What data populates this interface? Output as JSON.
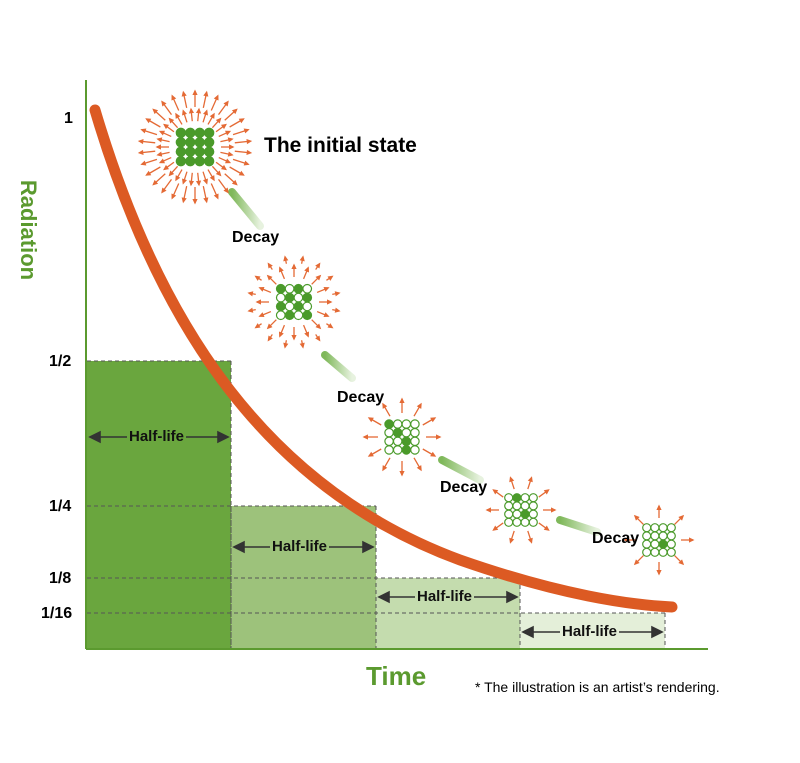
{
  "axes": {
    "y_title": "Radiation",
    "x_title": "Time",
    "y_ticks": [
      "1",
      "1/2",
      "1/4",
      "1/8",
      "1/16"
    ]
  },
  "initial_state_label": "The initial state",
  "decay_label": "Decay",
  "half_life_label": "Half-life",
  "footnote": "* The illustration is an artist’s rendering.",
  "colors": {
    "curve": "#dc5a23",
    "axis_green": "#5b9a2f",
    "block_1": "#6aa63e",
    "block_2": "#9dc27b",
    "block_3": "#c4dcae",
    "block_4": "#e4efd9",
    "arrow": "#e46a35",
    "atom": "#4a9a2a"
  },
  "stages": [
    {
      "name": "initial",
      "filled_atoms": 16
    },
    {
      "name": "decay-1",
      "filled_atoms": 8
    },
    {
      "name": "decay-2",
      "filled_atoms": 4
    },
    {
      "name": "decay-3",
      "filled_atoms": 2
    },
    {
      "name": "decay-4",
      "filled_atoms": 1
    }
  ]
}
